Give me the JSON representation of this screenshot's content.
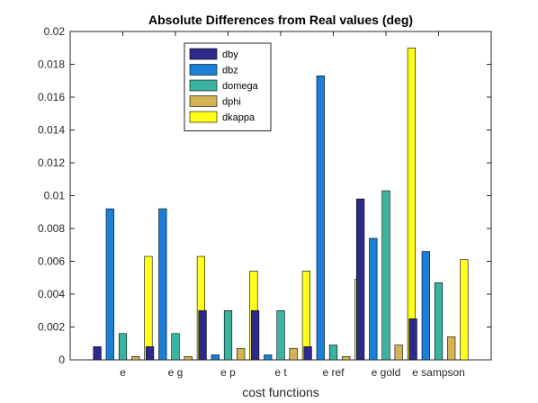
{
  "chart_data": {
    "type": "bar",
    "title": "Absolute Differences from Real values (deg)",
    "xlabel": "cost functions",
    "ylabel": "",
    "ylim": [
      0,
      0.02
    ],
    "yticks": [
      "0",
      "0.002",
      "0.004",
      "0.006",
      "0.008",
      "0.01",
      "0.012",
      "0.014",
      "0.016",
      "0.018",
      "0.02"
    ],
    "categories": [
      "e",
      "e g",
      "e p",
      "e t",
      "e ref",
      "e gold",
      "e sampson"
    ],
    "series": [
      {
        "name": "dby",
        "color": "#2e2a8c",
        "values": [
          0.0008,
          0.0008,
          0.003,
          0.003,
          0.0008,
          0.0098,
          0.0025
        ]
      },
      {
        "name": "dbz",
        "color": "#1a7fd6",
        "values": [
          0.0092,
          0.0092,
          0.0003,
          0.0003,
          0.0173,
          0.0074,
          0.0066
        ]
      },
      {
        "name": "domega",
        "color": "#3ab39f",
        "values": [
          0.0016,
          0.0016,
          0.003,
          0.003,
          0.0009,
          0.0103,
          0.0047
        ]
      },
      {
        "name": "dphi",
        "color": "#d4b354",
        "values": [
          0.0002,
          0.0002,
          0.0007,
          0.0007,
          0.0002,
          0.0009,
          0.0014
        ]
      },
      {
        "name": "dkappa",
        "color": "#ffff1a",
        "values": [
          0.0063,
          0.0063,
          0.0054,
          0.0054,
          0.0049,
          0.019,
          0.0061
        ]
      }
    ],
    "grid": false,
    "legend_position": "top-center"
  }
}
